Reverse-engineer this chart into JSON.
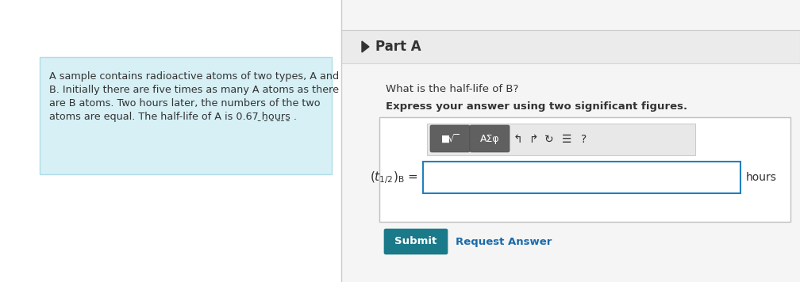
{
  "bg_color": "#f5f5f5",
  "white": "#ffffff",
  "problem_box_bg": "#d6f0f5",
  "problem_box_border": "#b0dce8",
  "problem_text_lines": [
    "A sample contains radioactive atoms of two types, A and",
    "B. Initially there are five times as many A atoms as there",
    "are B atoms. Two hours later, the numbers of the two",
    "atoms are equal. The half-life of A is 0.67 ̱ẖo̱u̱ṟs̱ ."
  ],
  "part_a_label": "Part A",
  "question_text": "What is the half-life of B?",
  "bold_text": "Express your answer using two significant figures.",
  "units_label": "hours",
  "submit_text": "Submit",
  "request_text": "Request Answer",
  "submit_color": "#1a7a8a",
  "request_color": "#1a6aaa",
  "input_border": "#2080c0",
  "divider_color": "#cccccc",
  "text_dark": "#333333",
  "header_bg": "#ebebeb",
  "header_border": "#d5d5d5",
  "toolbar_bg": "#e8e8e8",
  "toolbar_border": "#cccccc",
  "btn_color": "#606060",
  "btn_border": "#505050",
  "outer_box_border": "#c0c0c0",
  "icons": [
    "↰",
    "↱",
    "↻",
    "☰",
    "?"
  ]
}
